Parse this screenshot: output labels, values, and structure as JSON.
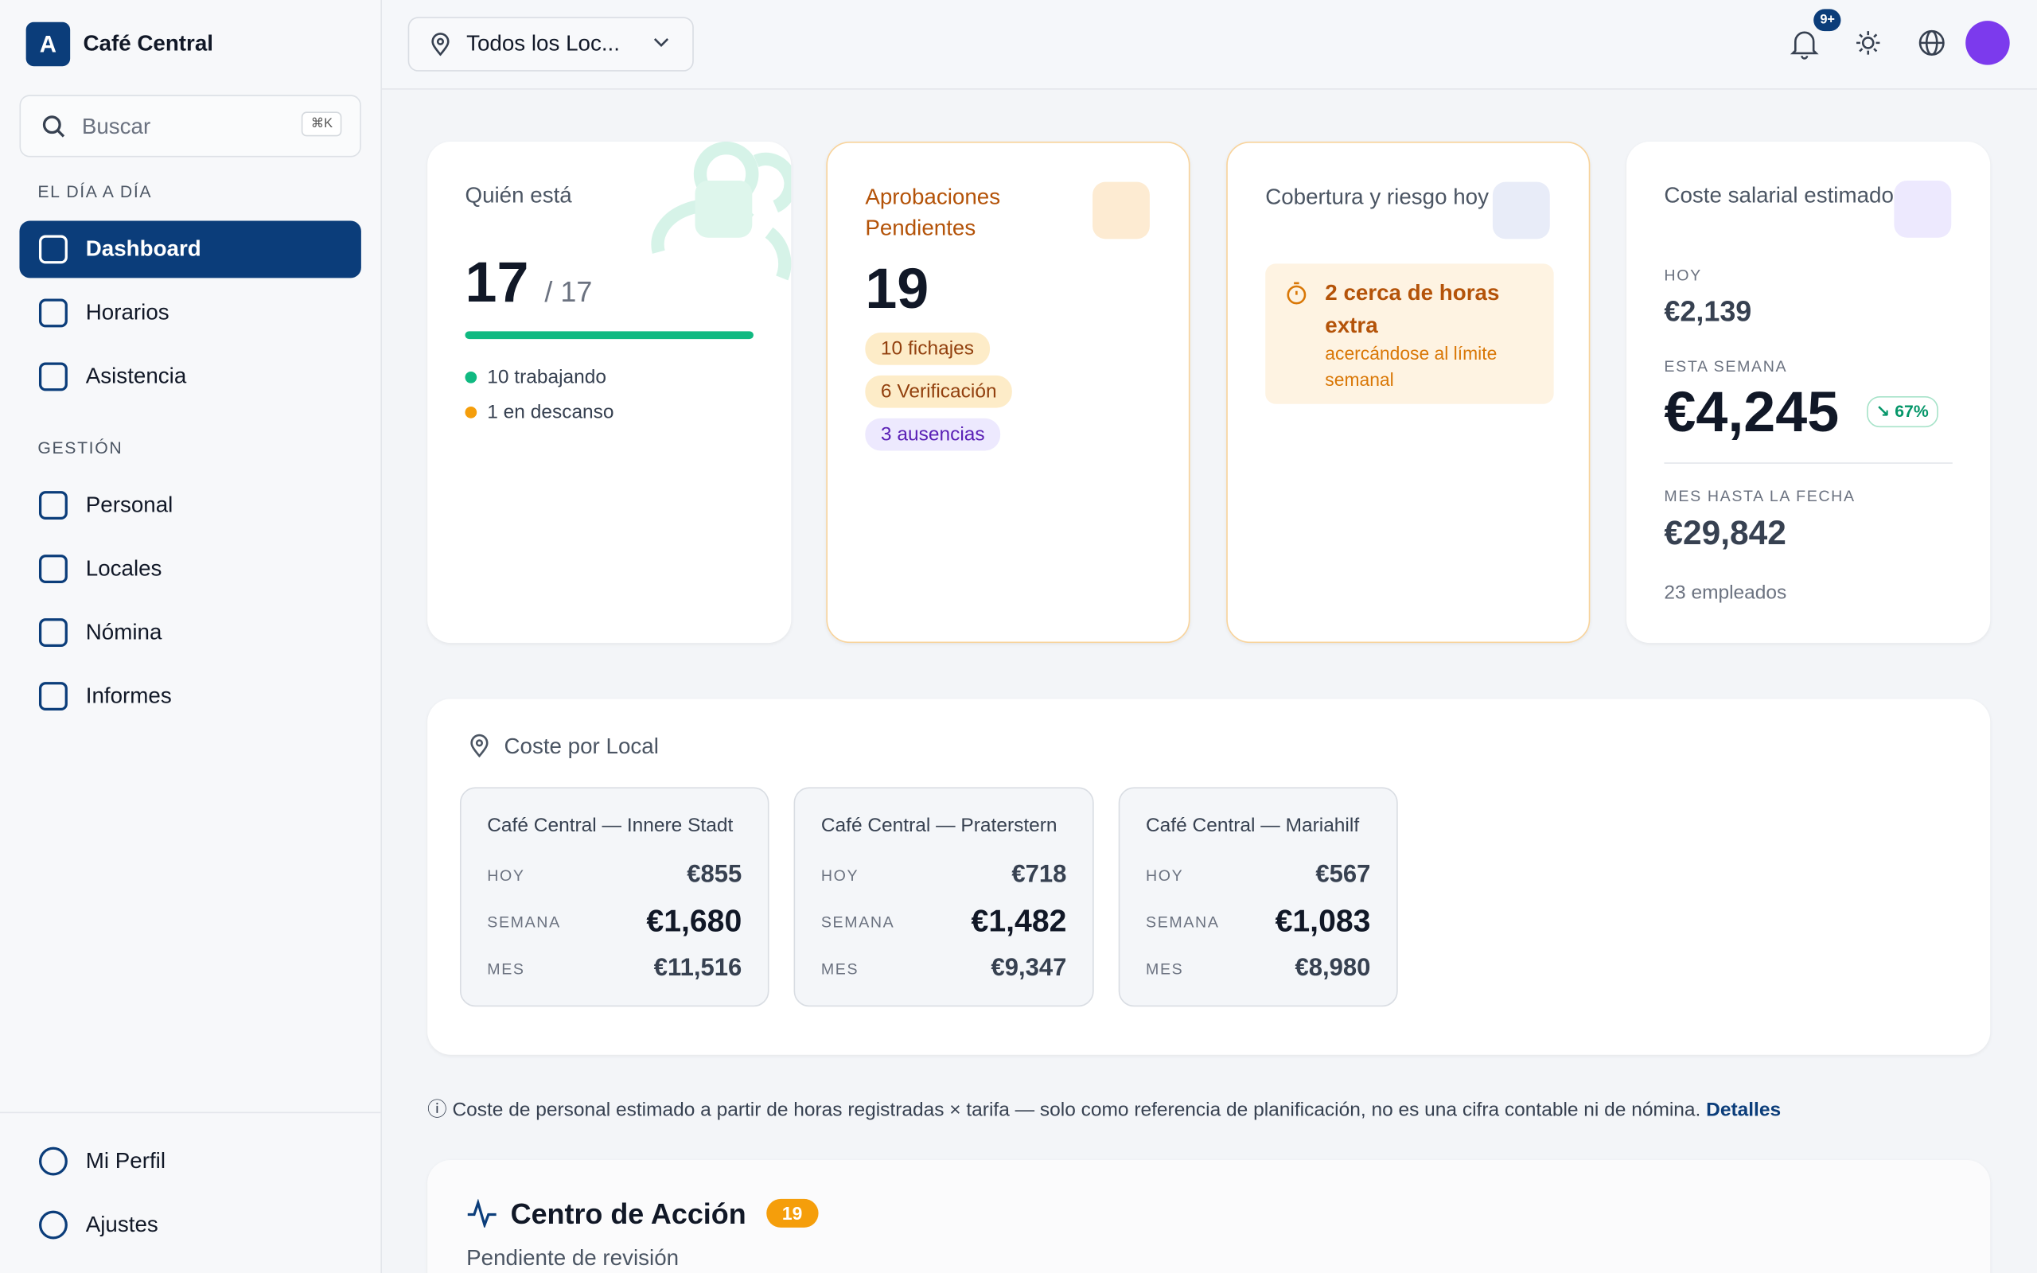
{
  "sidebar": {
    "brand_initial": "A",
    "brand": "Café Central",
    "search_placeholder": "Buscar",
    "search_shortcut": "⌘K",
    "sections": [
      {
        "title": "EL DÍA A DÍA",
        "items": [
          "Dashboard",
          "Horarios",
          "Asistencia"
        ]
      },
      {
        "title": "GESTIÓN",
        "items": [
          "Personal",
          "Locales",
          "Nómina",
          "Informes"
        ]
      }
    ],
    "footer_items": [
      "Mi Perfil",
      "Ajustes"
    ]
  },
  "topbar": {
    "location_selector": "Todos los Loc...",
    "notification_badge": "9+"
  },
  "cards": {
    "who": {
      "title": "Quién está",
      "present": "17",
      "total": "/ 17",
      "items": [
        "10 trabajando",
        "1 en descanso"
      ]
    },
    "approvals": {
      "title": "Aprobaciones Pendientes",
      "count": "19",
      "tags": [
        "10 fichajes",
        "6 Verificación",
        "3 ausencias"
      ]
    },
    "coverage": {
      "title": "Cobertura y riesgo hoy",
      "alert_title": "2 cerca de horas extra",
      "alert_text": "acercándose al límite semanal"
    },
    "cost": {
      "title": "Coste salarial estimado",
      "today_label": "HOY",
      "today": "€2,139",
      "week_label": "ESTA SEMANA",
      "week": "€4,245",
      "week_change": "67%",
      "month_label": "MES HASTA LA FECHA",
      "month": "€29,842",
      "employees": "23 empleados"
    }
  },
  "locations": {
    "title": "Coste por Local",
    "items": [
      {
        "name": "Café Central — Innere Stadt",
        "rows": [
          {
            "label": "HOY",
            "value": "€855"
          },
          {
            "label": "SEMANA",
            "value": "€1,680"
          },
          {
            "label": "MES",
            "value": "€11,516"
          }
        ]
      },
      {
        "name": "Café Central — Praterstern",
        "rows": [
          {
            "label": "HOY",
            "value": "€718"
          },
          {
            "label": "SEMANA",
            "value": "€1,482"
          },
          {
            "label": "MES",
            "value": "€9,347"
          }
        ]
      },
      {
        "name": "Café Central — Mariahilf",
        "rows": [
          {
            "label": "HOY",
            "value": "€567"
          },
          {
            "label": "SEMANA",
            "value": "€1,083"
          },
          {
            "label": "MES",
            "value": "€8,980"
          }
        ]
      }
    ]
  },
  "note": {
    "text": "Coste de personal estimado a partir de horas registradas × tarifa — solo como referencia de planificación, no es una cifra contable ni de nómina.",
    "link": "Detalles"
  },
  "action_center": {
    "title": "Centro de Acción",
    "badge": "19",
    "subtitle": "Pendiente de revisión"
  }
}
